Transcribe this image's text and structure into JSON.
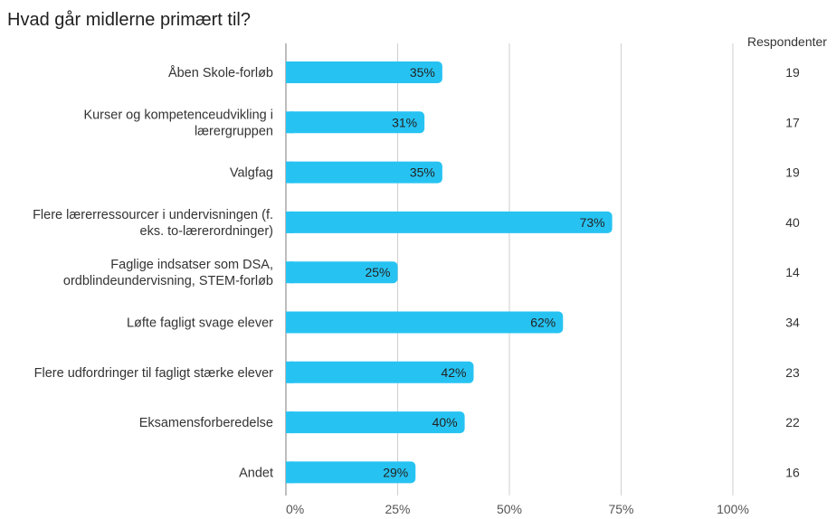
{
  "chart_data": {
    "type": "bar",
    "orientation": "horizontal",
    "title": "Hvad går midlerne primært til?",
    "categories": [
      [
        "Åben Skole-forløb"
      ],
      [
        "Kurser og kompetenceudvikling i",
        "lærergruppen"
      ],
      [
        "Valgfag"
      ],
      [
        "Flere lærerressourcer i undervisningen (f.",
        "eks. to-lærerordninger)"
      ],
      [
        "Faglige indsatser som DSA,",
        "ordblindeundervisning, STEM-forløb"
      ],
      [
        "Løfte fagligt svage elever"
      ],
      [
        "Flere udfordringer til fagligt stærke elever"
      ],
      [
        "Eksamensforberedelse"
      ],
      [
        "Andet"
      ]
    ],
    "values": [
      35,
      31,
      35,
      73,
      25,
      62,
      42,
      40,
      29
    ],
    "value_labels": [
      "35%",
      "31%",
      "35%",
      "73%",
      "25%",
      "62%",
      "42%",
      "40%",
      "29%"
    ],
    "xlim": [
      0,
      100
    ],
    "xticks": [
      0,
      25,
      50,
      75,
      100
    ],
    "xtick_labels": [
      "0%",
      "25%",
      "50%",
      "75%",
      "100%"
    ],
    "grid": true,
    "bar_color": "#26c3f2",
    "respondents_header": "Respondenter",
    "respondents": [
      "19",
      "17",
      "19",
      "40",
      "14",
      "34",
      "23",
      "22",
      "16"
    ]
  }
}
